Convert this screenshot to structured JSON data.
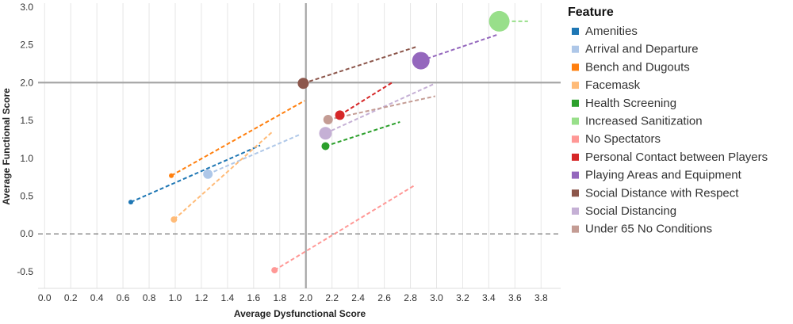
{
  "chart_data": {
    "type": "scatter",
    "xlabel": "Average Dysfunctional Score",
    "ylabel": "Average Functional Score",
    "xlim": [
      -0.05,
      3.95
    ],
    "ylim": [
      -0.72,
      3.05
    ],
    "x_ticks": [
      "0.0",
      "0.2",
      "0.4",
      "0.6",
      "0.8",
      "1.0",
      "1.2",
      "1.4",
      "1.6",
      "1.8",
      "2.0",
      "2.2",
      "2.4",
      "2.6",
      "2.8",
      "3.0",
      "3.2",
      "3.4",
      "3.6",
      "3.8"
    ],
    "y_ticks": [
      "-0.5",
      "0.0",
      "0.5",
      "1.0",
      "1.5",
      "2.0",
      "2.5",
      "3.0"
    ],
    "reference_lines": {
      "vertical_x": 2.0,
      "horizontal_y": 2.0,
      "zero_y": 0.0
    },
    "grid": "vertical",
    "legend": {
      "title": "Feature",
      "position": "right",
      "items": [
        "Amenities",
        "Arrival and Departure",
        "Bench and Dugouts",
        "Facemask",
        "Health Screening",
        "Increased Sanitization",
        "No Spectators",
        "Personal Contact between Players",
        "Playing Areas and Equipment",
        "Social Distance with Respect",
        "Social Distancing",
        "Under 65 No Conditions"
      ]
    },
    "series": [
      {
        "name": "Amenities",
        "color": "#1f77b4",
        "x": 0.66,
        "y": 0.42,
        "size": 3,
        "trend_end": [
          1.65,
          1.17
        ]
      },
      {
        "name": "Arrival and Departure",
        "color": "#aec7e8",
        "x": 1.25,
        "y": 0.79,
        "size": 6,
        "trend_end": [
          1.95,
          1.31
        ]
      },
      {
        "name": "Bench and Dugouts",
        "color": "#ff7f0e",
        "x": 0.97,
        "y": 0.77,
        "size": 3,
        "trend_end": [
          1.99,
          1.76
        ]
      },
      {
        "name": "Facemask",
        "color": "#ffbb78",
        "x": 0.99,
        "y": 0.19,
        "size": 4,
        "trend_end": [
          1.75,
          1.36
        ]
      },
      {
        "name": "Health Screening",
        "color": "#2ca02c",
        "x": 2.15,
        "y": 1.16,
        "size": 5,
        "trend_end": [
          2.72,
          1.48
        ]
      },
      {
        "name": "Increased Sanitization",
        "color": "#98df8a",
        "x": 3.48,
        "y": 2.81,
        "size": 13,
        "trend_end": [
          3.7,
          2.81
        ]
      },
      {
        "name": "No Spectators",
        "color": "#ff9896",
        "x": 1.76,
        "y": -0.48,
        "size": 4,
        "trend_end": [
          2.84,
          0.65
        ]
      },
      {
        "name": "Personal Contact between Players",
        "color": "#d62728",
        "x": 2.26,
        "y": 1.57,
        "size": 6,
        "trend_end": [
          2.66,
          2.0
        ]
      },
      {
        "name": "Playing Areas and Equipment",
        "color": "#9467bd",
        "x": 2.88,
        "y": 2.29,
        "size": 11,
        "trend_end": [
          3.46,
          2.63
        ]
      },
      {
        "name": "Social Distance with Respect",
        "color": "#8c564b",
        "x": 1.98,
        "y": 1.99,
        "size": 7,
        "trend_end": [
          2.84,
          2.47
        ]
      },
      {
        "name": "Social Distancing",
        "color": "#c5b0d5",
        "x": 2.15,
        "y": 1.33,
        "size": 8,
        "trend_end": [
          2.99,
          1.99
        ]
      },
      {
        "name": "Under 65 No Conditions",
        "color": "#c49c94",
        "x": 2.17,
        "y": 1.51,
        "size": 6,
        "trend_end": [
          2.99,
          1.82
        ]
      }
    ]
  }
}
